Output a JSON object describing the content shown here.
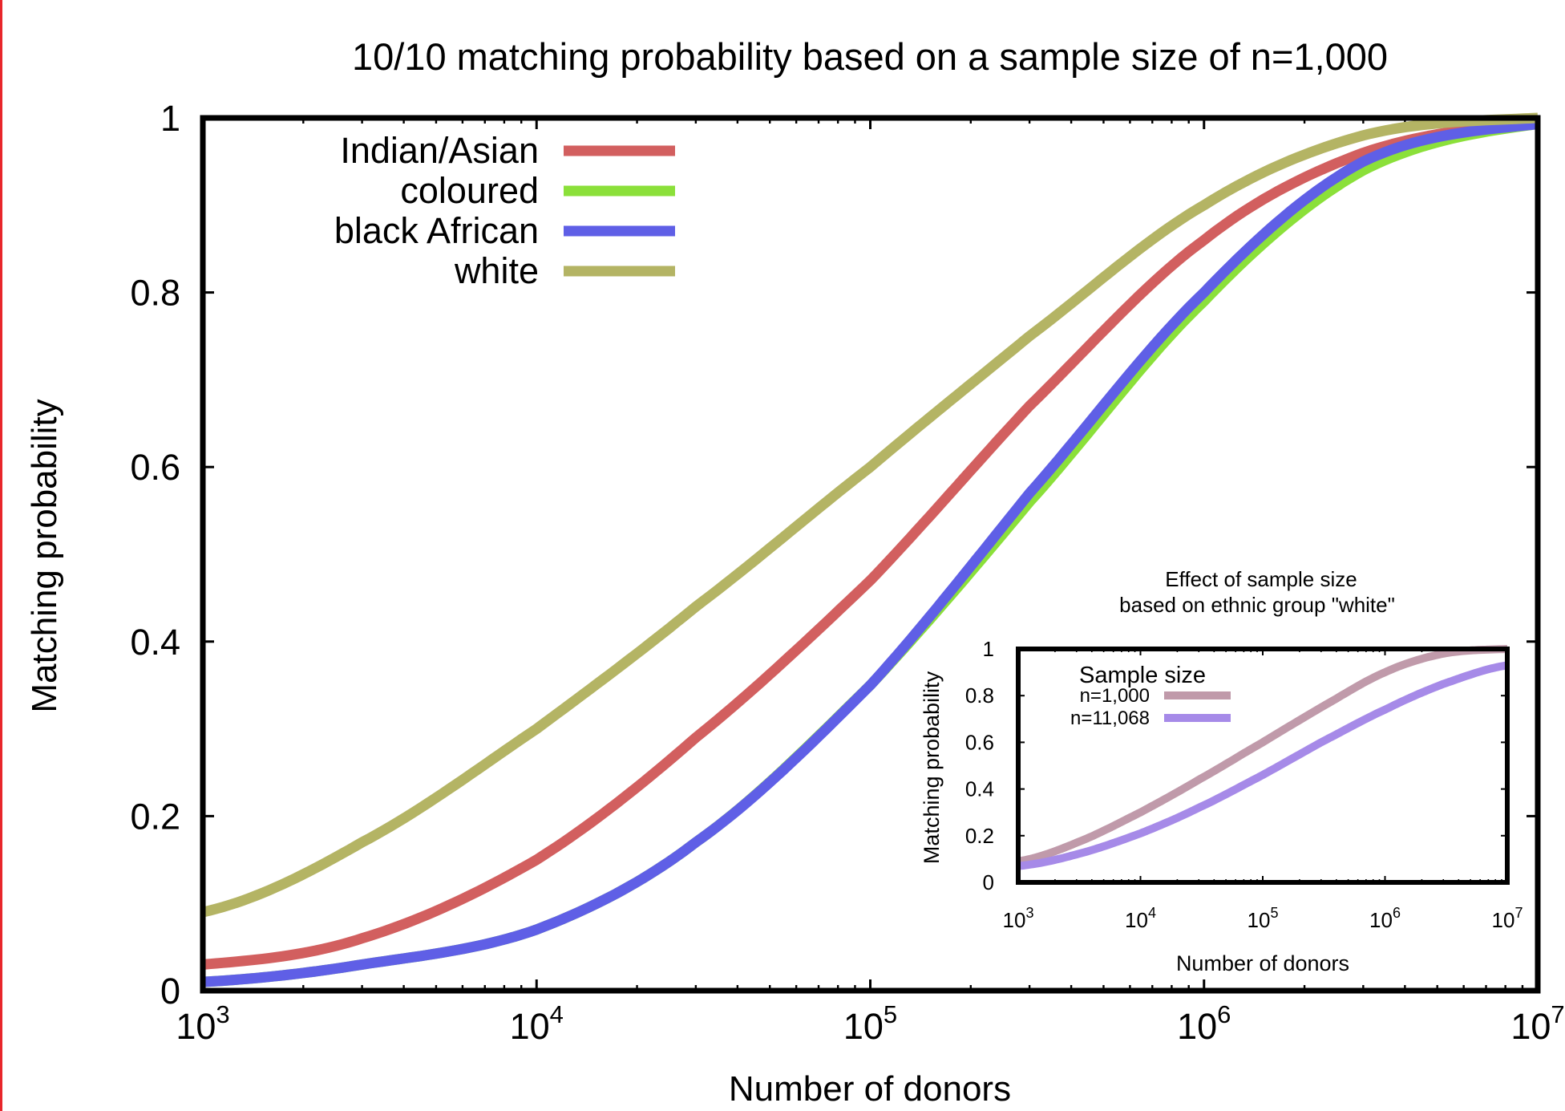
{
  "chart_data": [
    {
      "type": "line",
      "title": "10/10 matching probability based on a sample size of n=1,000",
      "xlabel": "Number of donors",
      "ylabel": "Matching probability",
      "xscale": "log",
      "xlim": [
        1000,
        10000000
      ],
      "ylim": [
        0,
        1
      ],
      "x_ticks": [
        {
          "base": "10",
          "exp": "3"
        },
        {
          "base": "10",
          "exp": "4"
        },
        {
          "base": "10",
          "exp": "5"
        },
        {
          "base": "10",
          "exp": "6"
        },
        {
          "base": "10",
          "exp": "7"
        }
      ],
      "y_ticks": [
        "0",
        "0.2",
        "0.4",
        "0.6",
        "0.8",
        "1"
      ],
      "legend_position": "top-left",
      "grid": false,
      "x": [
        1000,
        3000,
        10000,
        30000,
        100000,
        300000,
        1000000,
        3000000,
        10000000
      ],
      "series": [
        {
          "name": "Indian/Asian",
          "color": "#d25f5f",
          "values": [
            0.03,
            0.06,
            0.15,
            0.29,
            0.47,
            0.67,
            0.86,
            0.96,
            0.995
          ]
        },
        {
          "name": "coloured",
          "color": "#8be03a",
          "values": [
            0.01,
            0.03,
            0.07,
            0.17,
            0.35,
            0.56,
            0.79,
            0.94,
            0.993
          ]
        },
        {
          "name": "black African",
          "color": "#5f5fe6",
          "values": [
            0.01,
            0.03,
            0.07,
            0.17,
            0.35,
            0.57,
            0.8,
            0.95,
            0.993
          ]
        },
        {
          "name": "white",
          "color": "#b4b464",
          "values": [
            0.09,
            0.17,
            0.3,
            0.44,
            0.6,
            0.75,
            0.9,
            0.98,
            1.0
          ]
        }
      ]
    },
    {
      "type": "line",
      "title": "Effect of sample size",
      "subtitle": "based on ethnic group \"white\"",
      "xlabel": "Number of donors",
      "ylabel": "Matching probability",
      "xscale": "log",
      "xlim": [
        1000,
        10000000
      ],
      "ylim": [
        0,
        1
      ],
      "x_ticks": [
        {
          "base": "10",
          "exp": "3"
        },
        {
          "base": "10",
          "exp": "4"
        },
        {
          "base": "10",
          "exp": "5"
        },
        {
          "base": "10",
          "exp": "6"
        },
        {
          "base": "10",
          "exp": "7"
        }
      ],
      "y_ticks": [
        "0",
        "0.2",
        "0.4",
        "0.6",
        "0.8",
        "1"
      ],
      "legend_title": "Sample size",
      "legend_position": "top-left",
      "grid": false,
      "x": [
        1000,
        3000,
        10000,
        30000,
        100000,
        300000,
        1000000,
        3000000,
        10000000
      ],
      "series": [
        {
          "name": "n=1,000",
          "color": "#c09aaa",
          "values": [
            0.09,
            0.17,
            0.3,
            0.44,
            0.6,
            0.75,
            0.9,
            0.98,
            1.0
          ]
        },
        {
          "name": "n=11,068",
          "color": "#a68ae8",
          "values": [
            0.07,
            0.12,
            0.21,
            0.32,
            0.46,
            0.6,
            0.74,
            0.85,
            0.93
          ]
        }
      ]
    }
  ]
}
